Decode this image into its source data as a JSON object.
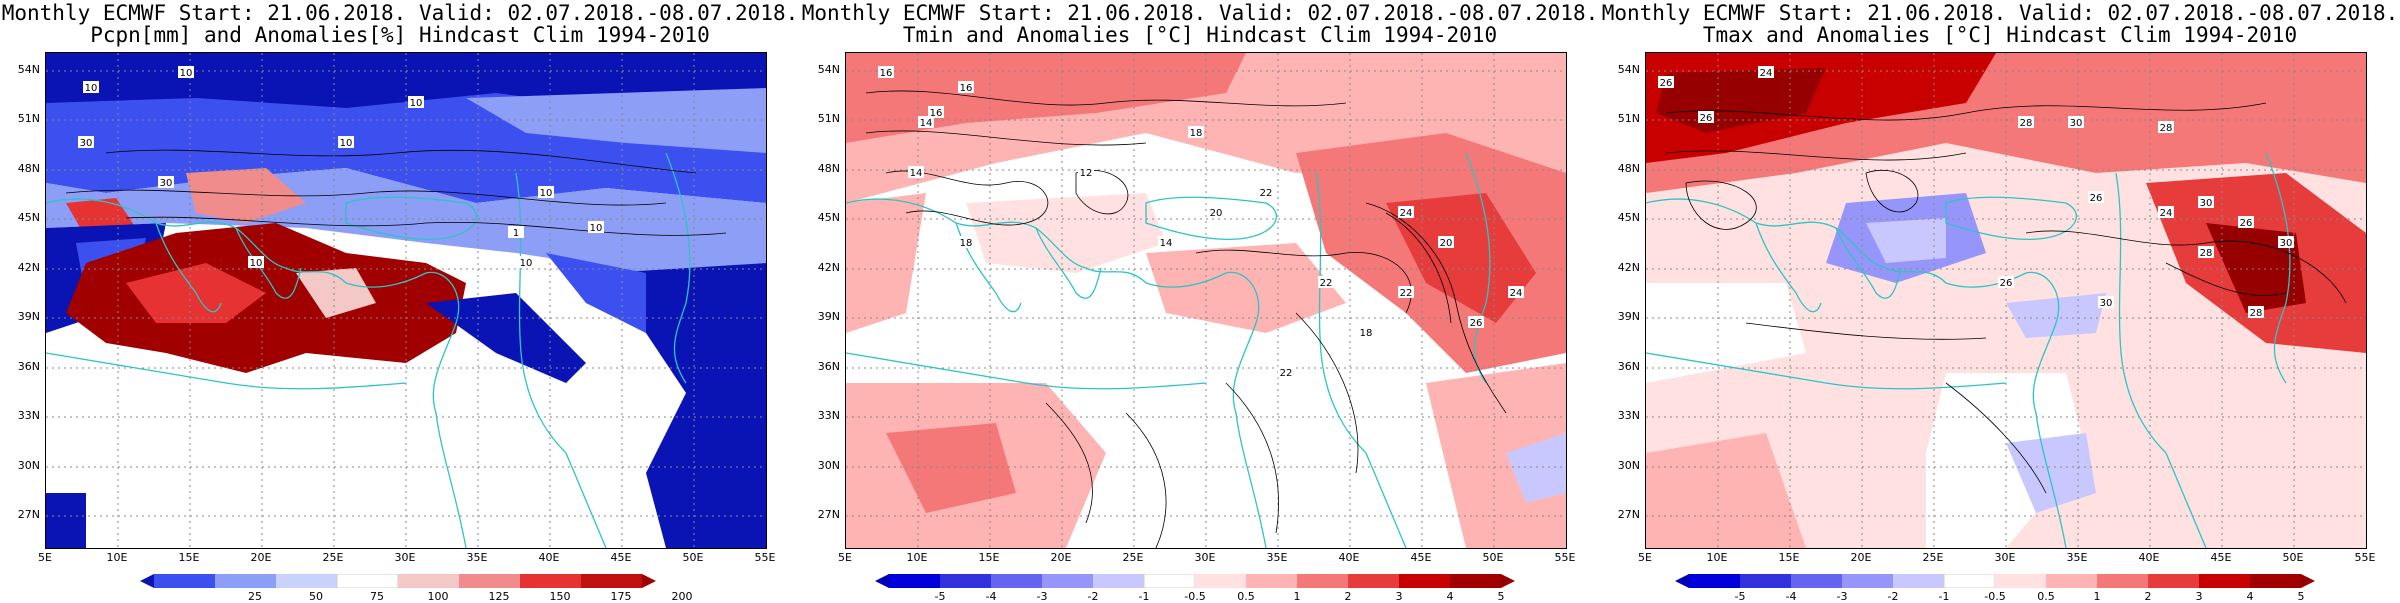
{
  "panels": [
    {
      "title_line1": "Monthly ECMWF Start: 21.06.2018. Valid: 02.07.2018.-08.07.2018.",
      "title_line2": "Pcpn[mm] and Anomalies[%] Hindcast Clim 1994-2010",
      "colorbar_labels": [
        "25",
        "50",
        "75",
        "100",
        "125",
        "150",
        "175",
        "200"
      ],
      "contour_labels": [
        "10",
        "10",
        "10",
        "10",
        "30",
        "30",
        "10",
        "10",
        "10",
        "10",
        "1"
      ]
    },
    {
      "title_line1": "Monthly ECMWF Start: 21.06.2018. Valid: 02.07.2018.-08.07.2018.",
      "title_line2": "Tmin and Anomalies [°C] Hindcast Clim 1994-2010",
      "colorbar_labels": [
        "-5",
        "-4",
        "-3",
        "-2",
        "-1",
        "-0.5",
        "0.5",
        "1",
        "2",
        "3",
        "4",
        "5"
      ],
      "contour_labels": [
        "16",
        "16",
        "16",
        "18",
        "14",
        "14",
        "12",
        "20",
        "22",
        "18",
        "14",
        "24",
        "22",
        "22",
        "20",
        "18",
        "26",
        "24",
        "22"
      ]
    },
    {
      "title_line1": "Monthly ECMWF Start: 21.06.2018. Valid: 02.07.2018.-08.07.2018.",
      "title_line2": "Tmax and Anomalies [°C] Hindcast Clim 1994-2010",
      "colorbar_labels": [
        "-5",
        "-4",
        "-3",
        "-2",
        "-1",
        "-0.5",
        "0.5",
        "1",
        "2",
        "3",
        "4",
        "5"
      ],
      "contour_labels": [
        "26",
        "26",
        "24",
        "28",
        "30",
        "28",
        "26",
        "24",
        "30",
        "26",
        "28",
        "30",
        "28",
        "26",
        "30"
      ]
    }
  ],
  "axes": {
    "lat_labels": [
      "54N",
      "51N",
      "48N",
      "45N",
      "42N",
      "39N",
      "36N",
      "33N",
      "30N",
      "27N"
    ],
    "lon_labels": [
      "5E",
      "10E",
      "15E",
      "20E",
      "25E",
      "30E",
      "35E",
      "40E",
      "45E",
      "50E",
      "55E"
    ]
  },
  "colors": {
    "coast": "#2ec4c4",
    "precip_scale": [
      "#0a14b4",
      "#3c50f0",
      "#8c9ef5",
      "#c8d2fa",
      "#ffffff",
      "#f5c8c8",
      "#f08c8c",
      "#e63232",
      "#a00000"
    ],
    "temp_scale": [
      "#0000b4",
      "#3232dc",
      "#6464f0",
      "#9696fa",
      "#c8c8ff",
      "#e6e6ff",
      "#ffffff",
      "#ffe1e1",
      "#ffb4b4",
      "#f57878",
      "#e63c3c",
      "#c80000",
      "#960000"
    ]
  }
}
